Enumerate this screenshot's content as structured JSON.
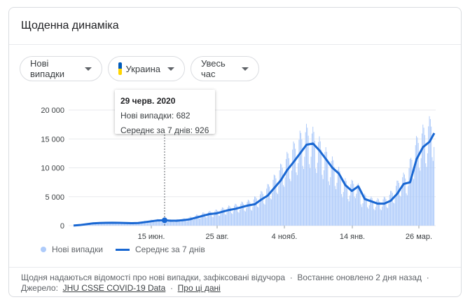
{
  "card": {
    "title": "Щоденна динаміка"
  },
  "filters": [
    {
      "label": "Нові випадки"
    },
    {
      "label": "Украина",
      "flag_colors": [
        "#005bbb",
        "#ffd500"
      ]
    },
    {
      "label": "Увесь час"
    }
  ],
  "tooltip": {
    "date": "29 черв. 2020",
    "new_cases": "Нові випадки: 682",
    "avg": "Середнє за 7 днів: 926"
  },
  "legend": {
    "bars": "Нові випадки",
    "line": "Середнє за 7 днів"
  },
  "footer": {
    "note": "Щодня надаються відомості про нові випадки, зафіксовані відучора",
    "updated": "Востаннє оновлено 2 дня назад",
    "source_label": "Джерело:",
    "source_link": "JHU CSSE COVID-19 Data",
    "about_link": "Про ці дані",
    "sep": "·"
  },
  "chart_data": {
    "type": "bar+line",
    "x_start": "2020-03-23",
    "x_step": "week",
    "xtick_labels": [
      "15 июн.",
      "25 авг.",
      "4 нояб.",
      "14 янв.",
      "26 мар."
    ],
    "ytick_labels": [
      "0",
      "5 000",
      "10 000",
      "15 000",
      "20 000"
    ],
    "ylim": [
      0,
      20000
    ],
    "grid": true,
    "legend_position": "bottom-left",
    "colors": {
      "bars": "#aecbfa",
      "line": "#1967d2"
    },
    "series": [
      {
        "name": "Середнє за 7 днів",
        "type": "line",
        "values": [
          20,
          100,
          250,
          400,
          450,
          480,
          500,
          480,
          450,
          420,
          450,
          600,
          750,
          900,
          926,
          850,
          850,
          950,
          1100,
          1400,
          1700,
          2000,
          2100,
          2400,
          2700,
          2900,
          3200,
          3500,
          3700,
          4500,
          5200,
          6500,
          7800,
          9600,
          11000,
          12500,
          14000,
          14200,
          13000,
          11500,
          10000,
          9000,
          7000,
          6000,
          6800,
          4600,
          4200,
          3800,
          3800,
          4300,
          5500,
          7200,
          7500,
          11500,
          13600,
          14500,
          16000
        ]
      }
    ]
  }
}
